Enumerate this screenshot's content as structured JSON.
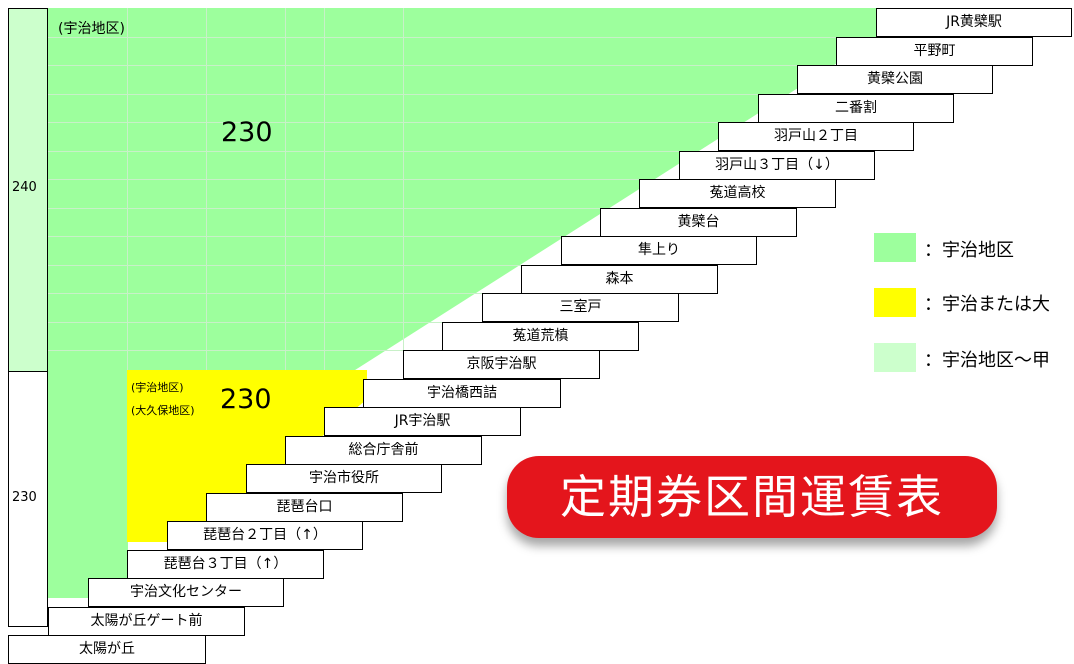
{
  "fare_column": {
    "upper_fare": "240",
    "lower_fare": "230"
  },
  "zones": {
    "upper": {
      "label": "(宇治地区)",
      "fare": "230"
    },
    "middle": {
      "label_1": "(宇治地区)",
      "label_2": "(大久保地区)",
      "fare": "230"
    }
  },
  "stops": [
    "JR黄檗駅",
    "平野町",
    "黄檗公園",
    "二番割",
    "羽戸山２丁目",
    "羽戸山３丁目（↓）",
    "菟道高校",
    "黄檗台",
    "隼上り",
    "森本",
    "三室戸",
    "菟道荒槙",
    "京阪宇治駅",
    "宇治橋西詰",
    "JR宇治駅",
    "総合庁舎前",
    "宇治市役所",
    "琵琶台口",
    "琵琶台２丁目（↑）",
    "琵琶台３丁目（↑）",
    "宇治文化センター",
    "太陽が丘ゲート前",
    "太陽が丘"
  ],
  "legend": [
    {
      "color": "#9dff9d",
      "text": "：宇治地区"
    },
    {
      "color": "#ffff00",
      "text": "：宇治または大"
    },
    {
      "color": "#ccffcc",
      "text": "：宇治地区～甲"
    }
  ],
  "title": "定期券区間運賃表",
  "colors": {
    "green": "#9dff9d",
    "yellow": "#ffff00",
    "light_green": "#ccffcc",
    "title_red": "#e4151c"
  }
}
